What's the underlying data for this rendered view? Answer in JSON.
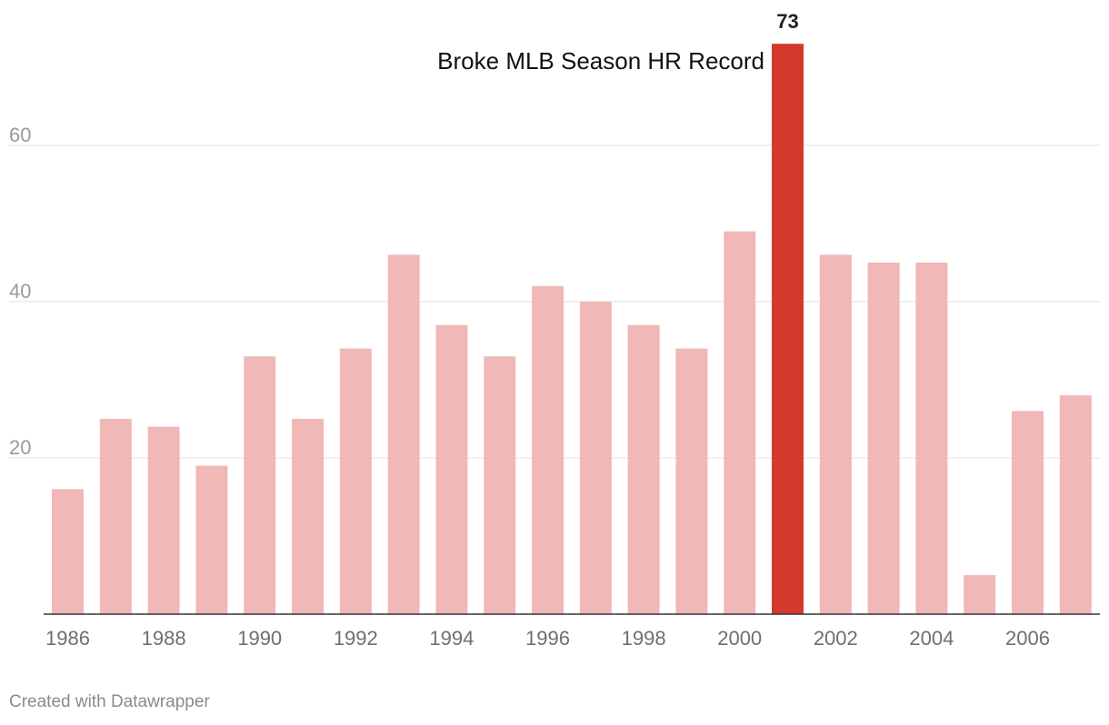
{
  "chart_data": {
    "type": "bar",
    "title": "",
    "xlabel": "",
    "ylabel": "",
    "categories": [
      "1986",
      "1987",
      "1988",
      "1989",
      "1990",
      "1991",
      "1992",
      "1993",
      "1994",
      "1995",
      "1996",
      "1997",
      "1998",
      "1999",
      "2000",
      "2001",
      "2002",
      "2003",
      "2004",
      "2005",
      "2006",
      "2007"
    ],
    "values": [
      16,
      25,
      24,
      19,
      33,
      25,
      34,
      46,
      37,
      33,
      42,
      40,
      37,
      34,
      49,
      73,
      46,
      45,
      45,
      5,
      26,
      28
    ],
    "x_tick_labels": [
      "1986",
      "1988",
      "1990",
      "1992",
      "1994",
      "1996",
      "1998",
      "2000",
      "2002",
      "2004",
      "2006"
    ],
    "y_ticks": [
      20,
      40,
      60
    ],
    "ylim": [
      0,
      73
    ],
    "grid": true,
    "highlight": {
      "category": "2001",
      "value_label": "73",
      "annotation": "Broke MLB Season HR Record"
    },
    "colors": {
      "bar": "#f0b9b7",
      "highlight": "#d4392e"
    }
  },
  "footer": {
    "credit": "Created with Datawrapper"
  }
}
